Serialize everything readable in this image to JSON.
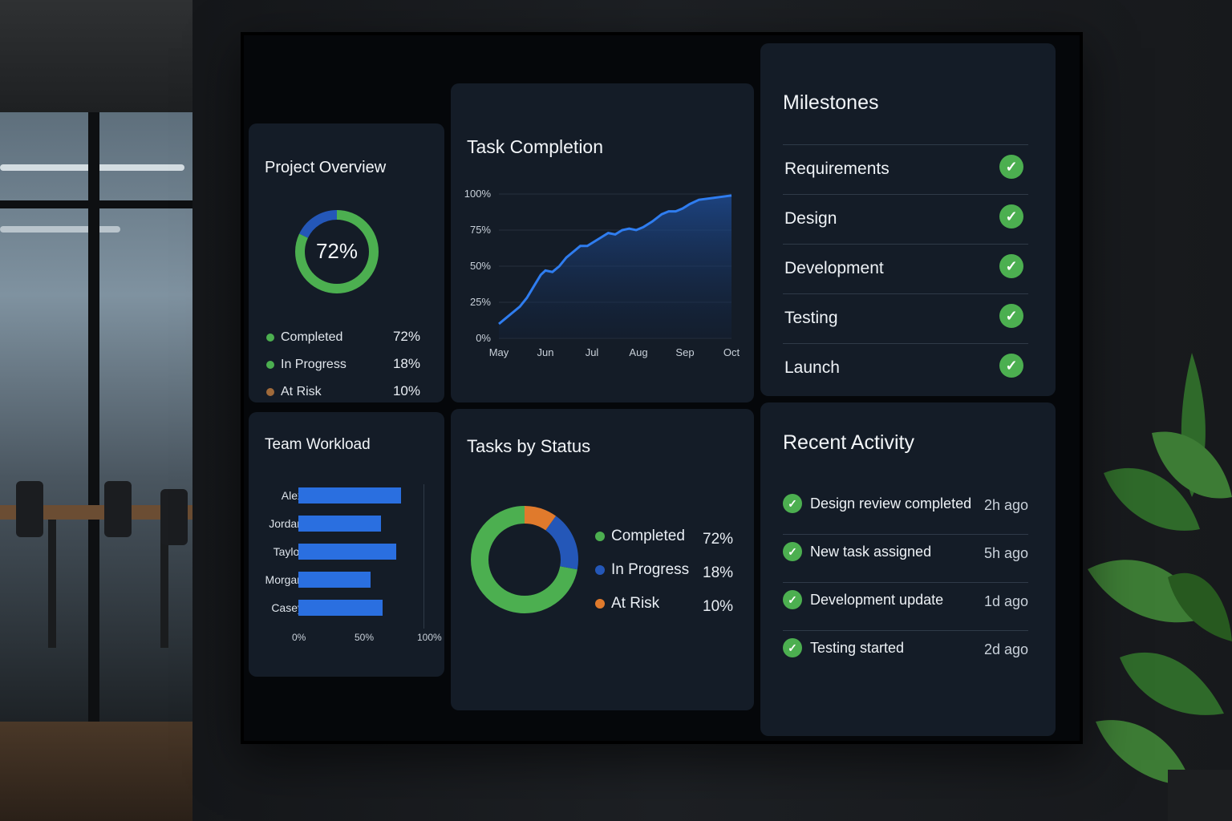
{
  "colors": {
    "completed": "#4caf50",
    "in_progress": "#2457b8",
    "at_risk": "#e07a2c",
    "bar": "#2a6fe0",
    "line": "#2f7df0"
  },
  "project_overview": {
    "title": "Project Overview",
    "center_value": "72%",
    "legend": [
      {
        "label": "Completed",
        "value": "72%",
        "color": "#4caf50"
      },
      {
        "label": "In Progress",
        "value": "18%",
        "color": "#4caf50"
      },
      {
        "label": "At Risk",
        "value": "10%",
        "color": "#a06a3a"
      }
    ]
  },
  "task_completion": {
    "title": "Task Completion"
  },
  "milestones": {
    "title": "Milestones",
    "items": [
      {
        "label": "Requirements",
        "icon": "check-icon"
      },
      {
        "label": "Design",
        "icon": "check-icon"
      },
      {
        "label": "Development",
        "icon": "check-icon"
      },
      {
        "label": "Testing",
        "icon": "check-icon"
      },
      {
        "label": "Launch",
        "icon": "check-icon"
      }
    ]
  },
  "team_workload": {
    "title": "Team Workload"
  },
  "tasks_by_status": {
    "title": "Tasks by Status",
    "legend": [
      {
        "label": "Completed",
        "value": "72%",
        "color": "#4caf50"
      },
      {
        "label": "In Progress",
        "value": "18%",
        "color": "#2457b8"
      },
      {
        "label": "At Risk",
        "value": "10%",
        "color": "#e07a2c"
      }
    ]
  },
  "recent_activity": {
    "title": "Recent Activity",
    "items": [
      {
        "text": "Design review completed",
        "time": "2h ago",
        "icon": "check-icon"
      },
      {
        "text": "New task assigned",
        "time": "5h ago",
        "icon": "check-icon"
      },
      {
        "text": "Development update",
        "time": "1d ago",
        "icon": "check-icon"
      },
      {
        "text": "Testing started",
        "time": "2d ago",
        "icon": "check-icon"
      }
    ]
  },
  "chart_data": [
    {
      "type": "pie",
      "variant": "donut",
      "title": "Project Overview",
      "categories": [
        "Completed",
        "In Progress",
        "At Risk"
      ],
      "values": [
        72,
        18,
        10
      ]
    },
    {
      "type": "area",
      "title": "Task Completion",
      "x": [
        "May",
        "Jun",
        "Jul",
        "Aug",
        "Sep",
        "Oct"
      ],
      "y_ticks": [
        "0%",
        "25%",
        "50%",
        "75%",
        "100%"
      ],
      "ylim": [
        0,
        100
      ],
      "points": [
        [
          0,
          10
        ],
        [
          0.15,
          14
        ],
        [
          0.3,
          18
        ],
        [
          0.45,
          22
        ],
        [
          0.6,
          28
        ],
        [
          0.75,
          36
        ],
        [
          0.9,
          44
        ],
        [
          1.0,
          47
        ],
        [
          1.15,
          46
        ],
        [
          1.3,
          50
        ],
        [
          1.45,
          56
        ],
        [
          1.6,
          60
        ],
        [
          1.75,
          64
        ],
        [
          1.9,
          64
        ],
        [
          2.05,
          67
        ],
        [
          2.2,
          70
        ],
        [
          2.35,
          73
        ],
        [
          2.5,
          72
        ],
        [
          2.65,
          75
        ],
        [
          2.8,
          76
        ],
        [
          2.95,
          75
        ],
        [
          3.1,
          77
        ],
        [
          3.3,
          81
        ],
        [
          3.5,
          86
        ],
        [
          3.65,
          88
        ],
        [
          3.8,
          88
        ],
        [
          3.95,
          90
        ],
        [
          4.1,
          93
        ],
        [
          4.3,
          96
        ],
        [
          5.0,
          99
        ]
      ],
      "grid": true
    },
    {
      "type": "bar",
      "orientation": "horizontal",
      "title": "Team Workload",
      "categories": [
        "Alex",
        "Jordan",
        "Taylor",
        "Morgan",
        "Casey"
      ],
      "values": [
        82,
        66,
        78,
        58,
        67
      ],
      "x_ticks": [
        "0%",
        "50%",
        "100%"
      ],
      "xlim": [
        0,
        100
      ]
    },
    {
      "type": "pie",
      "variant": "donut",
      "title": "Tasks by Status",
      "categories": [
        "Completed",
        "In Progress",
        "At Risk"
      ],
      "values": [
        72,
        18,
        10
      ]
    }
  ]
}
